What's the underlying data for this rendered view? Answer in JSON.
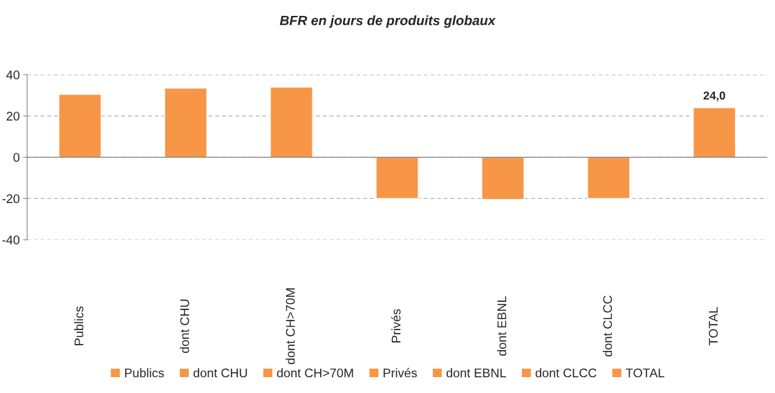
{
  "chart_data": {
    "type": "bar",
    "title": "BFR en jours de produits globaux",
    "categories": [
      "Publics",
      "dont CHU",
      "dont CH>70M",
      "Privés",
      "dont EBNL",
      "dont CLCC",
      "TOTAL"
    ],
    "series": [
      {
        "name": "Publics",
        "color": "#f79646",
        "values": [
          30.5,
          null,
          null,
          null,
          null,
          null,
          null
        ]
      },
      {
        "name": "dont CHU",
        "color": "#f79646",
        "values": [
          null,
          33.5,
          null,
          null,
          null,
          null,
          null
        ]
      },
      {
        "name": "dont CH>70M",
        "color": "#f79646",
        "values": [
          null,
          null,
          34,
          null,
          null,
          null,
          null
        ]
      },
      {
        "name": "Privés",
        "color": "#f79646",
        "values": [
          null,
          null,
          null,
          -20,
          null,
          null,
          null
        ]
      },
      {
        "name": "dont EBNL",
        "color": "#f79646",
        "values": [
          null,
          null,
          null,
          null,
          -20.5,
          null,
          null
        ]
      },
      {
        "name": "dont CLCC",
        "color": "#f79646",
        "values": [
          null,
          null,
          null,
          null,
          null,
          -20,
          null
        ]
      },
      {
        "name": "TOTAL",
        "color": "#f79646",
        "values": [
          null,
          null,
          null,
          null,
          null,
          null,
          24.0
        ],
        "value_labels": [
          null,
          null,
          null,
          null,
          null,
          null,
          "24,0"
        ]
      }
    ],
    "ylim": [
      -40,
      40
    ],
    "yticks": [
      -40,
      -20,
      0,
      20,
      40
    ],
    "grid": "y",
    "legend": "bottom"
  }
}
